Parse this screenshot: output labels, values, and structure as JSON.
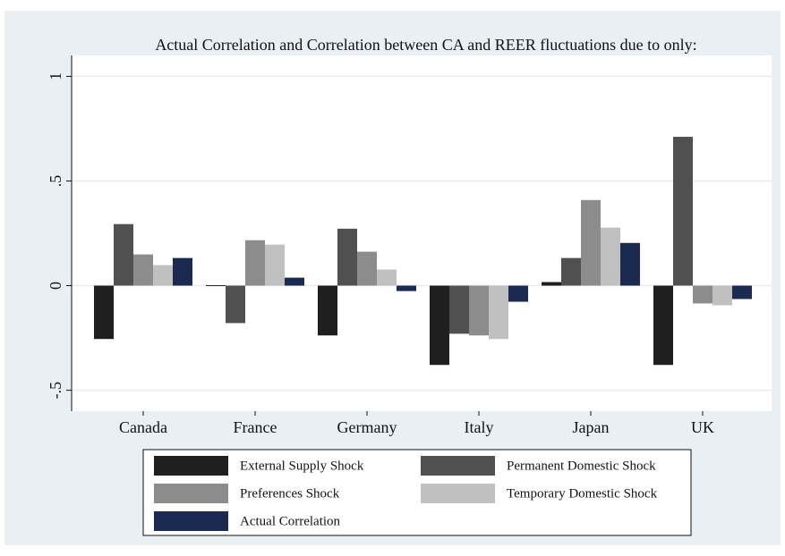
{
  "chart_data": {
    "type": "bar",
    "title": "Actual Correlation and Correlation between CA and REER fluctuations due to only:",
    "categories": [
      "Canada",
      "France",
      "Germany",
      "Italy",
      "Japan",
      "UK"
    ],
    "series": [
      {
        "name": "External Supply Shock",
        "color": "#1f1f1f",
        "values": [
          -0.255,
          0.002,
          -0.238,
          -0.379,
          0.017,
          -0.379
        ]
      },
      {
        "name": "Permanent Domestic Shock",
        "color": "#505050",
        "values": [
          0.294,
          -0.179,
          0.272,
          -0.23,
          0.132,
          0.711
        ]
      },
      {
        "name": "Preferences Shock",
        "color": "#8c8c8c",
        "values": [
          0.149,
          0.217,
          0.162,
          -0.238,
          0.409,
          -0.085
        ]
      },
      {
        "name": "Temporary Domestic Shock",
        "color": "#c0c0c0",
        "values": [
          0.098,
          0.196,
          0.077,
          -0.255,
          0.277,
          -0.094
        ]
      },
      {
        "name": "Actual Correlation",
        "color": "#1a2a50",
        "values": [
          0.132,
          0.038,
          -0.026,
          -0.077,
          0.204,
          -0.064
        ]
      }
    ],
    "ylim": [
      -0.6,
      1.1
    ],
    "yticks": [
      {
        "value": -0.5,
        "label": "-.5"
      },
      0,
      {
        "value": 0.5,
        "label": ".5"
      },
      1
    ],
    "grid": true
  }
}
